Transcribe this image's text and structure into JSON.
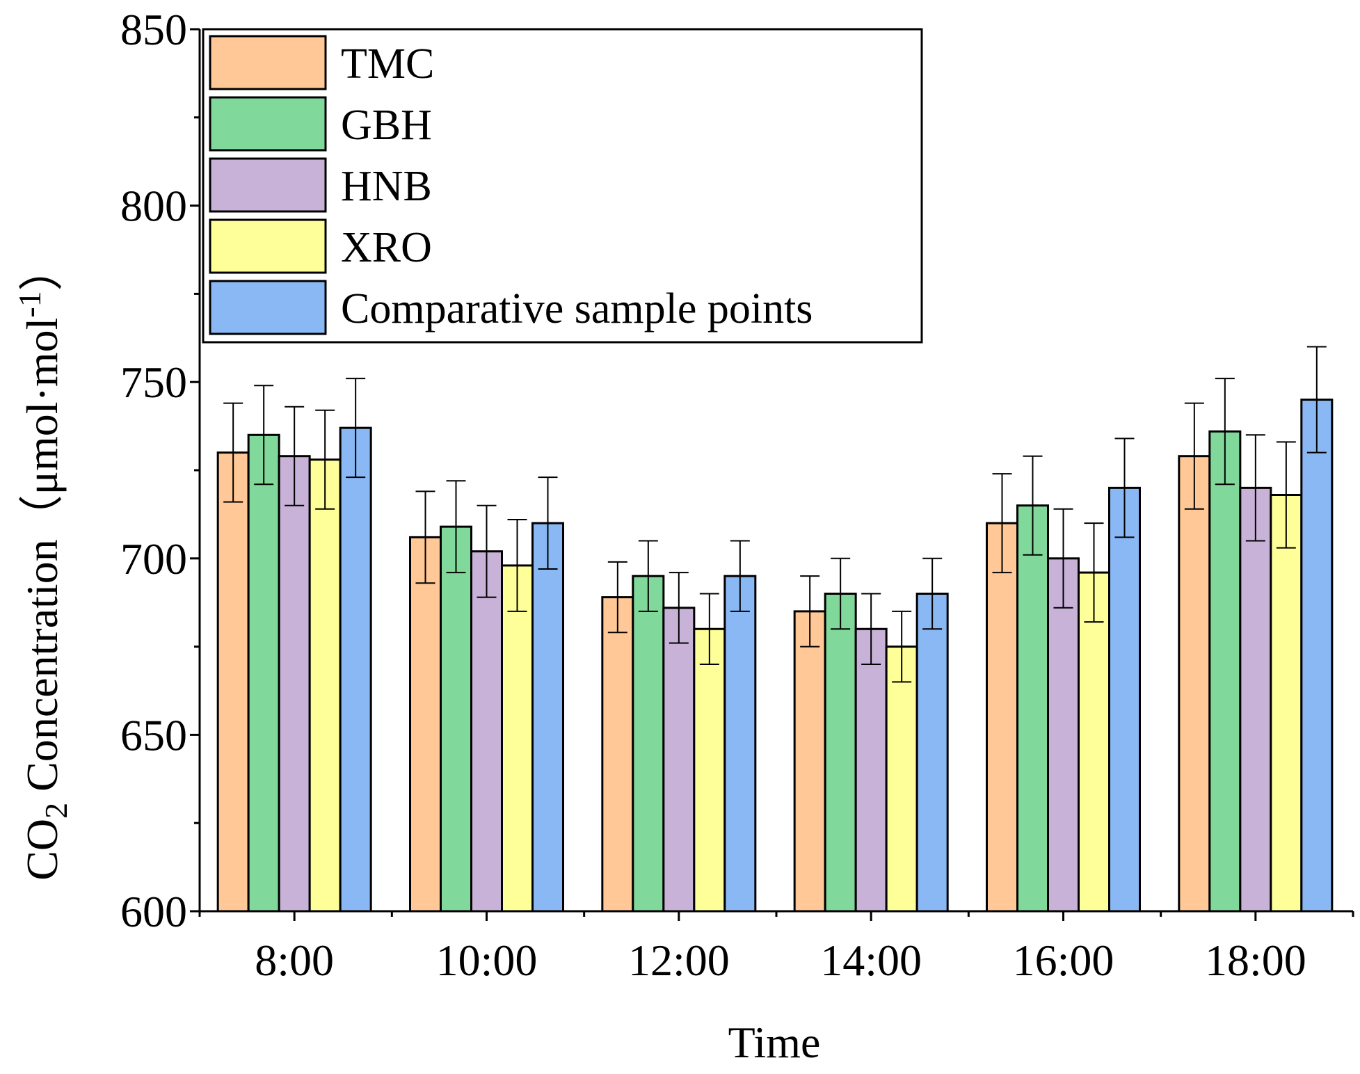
{
  "chart_data": {
    "type": "bar",
    "title": "",
    "xlabel": "Time",
    "ylabel_parts": {
      "pre": "CO",
      "sub": "2",
      "mid": " Concentration（μmol·mol",
      "sup": "-1",
      "post": "）"
    },
    "ylim": [
      600,
      850
    ],
    "yticks": [
      600,
      650,
      700,
      750,
      800,
      850
    ],
    "categories": [
      "8:00",
      "10:00",
      "12:00",
      "14:00",
      "16:00",
      "18:00"
    ],
    "series": [
      {
        "name": "TMC",
        "color": "#FFC896",
        "values": [
          730,
          706,
          689,
          685,
          710,
          729
        ],
        "errors": [
          14,
          13,
          10,
          10,
          14,
          15
        ]
      },
      {
        "name": "GBH",
        "color": "#80D89A",
        "values": [
          735,
          709,
          695,
          690,
          715,
          736
        ],
        "errors": [
          14,
          13,
          10,
          10,
          14,
          15
        ]
      },
      {
        "name": "HNB",
        "color": "#C9B2D8",
        "values": [
          729,
          702,
          686,
          680,
          700,
          720
        ],
        "errors": [
          14,
          13,
          10,
          10,
          14,
          15
        ]
      },
      {
        "name": "XRO",
        "color": "#FFFF99",
        "values": [
          728,
          698,
          680,
          675,
          696,
          718
        ],
        "errors": [
          14,
          13,
          10,
          10,
          14,
          15
        ]
      },
      {
        "name": "Comparative sample points",
        "color": "#8AB8F4",
        "values": [
          737,
          710,
          695,
          690,
          720,
          745
        ],
        "errors": [
          14,
          13,
          10,
          10,
          14,
          15
        ]
      }
    ],
    "legend_position": "top-left"
  }
}
